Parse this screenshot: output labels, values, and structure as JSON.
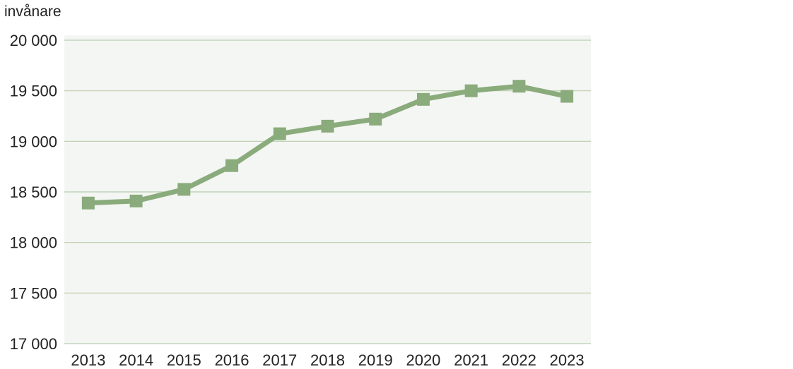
{
  "chart_data": {
    "type": "line",
    "title": "",
    "ylabel": "invånare",
    "xlabel": "",
    "x": [
      "2013",
      "2014",
      "2015",
      "2016",
      "2017",
      "2018",
      "2019",
      "2020",
      "2021",
      "2022",
      "2023"
    ],
    "series": [
      {
        "values": [
          18390,
          18410,
          18525,
          18760,
          19075,
          19150,
          19220,
          19415,
          19500,
          19545,
          19445
        ]
      }
    ],
    "ylim": [
      17000,
      20000
    ],
    "yticks": [
      17000,
      17500,
      18000,
      18500,
      19000,
      19500,
      20000
    ],
    "ytick_labels": [
      "17 000",
      "17 500",
      "18 000",
      "18 500",
      "19 000",
      "19 500",
      "20 000"
    ],
    "grid": true,
    "legend": "none",
    "colors": {
      "series": "#8aab7b",
      "plot_background": "#f4f6f3",
      "grid": "#b9cdb0"
    }
  }
}
